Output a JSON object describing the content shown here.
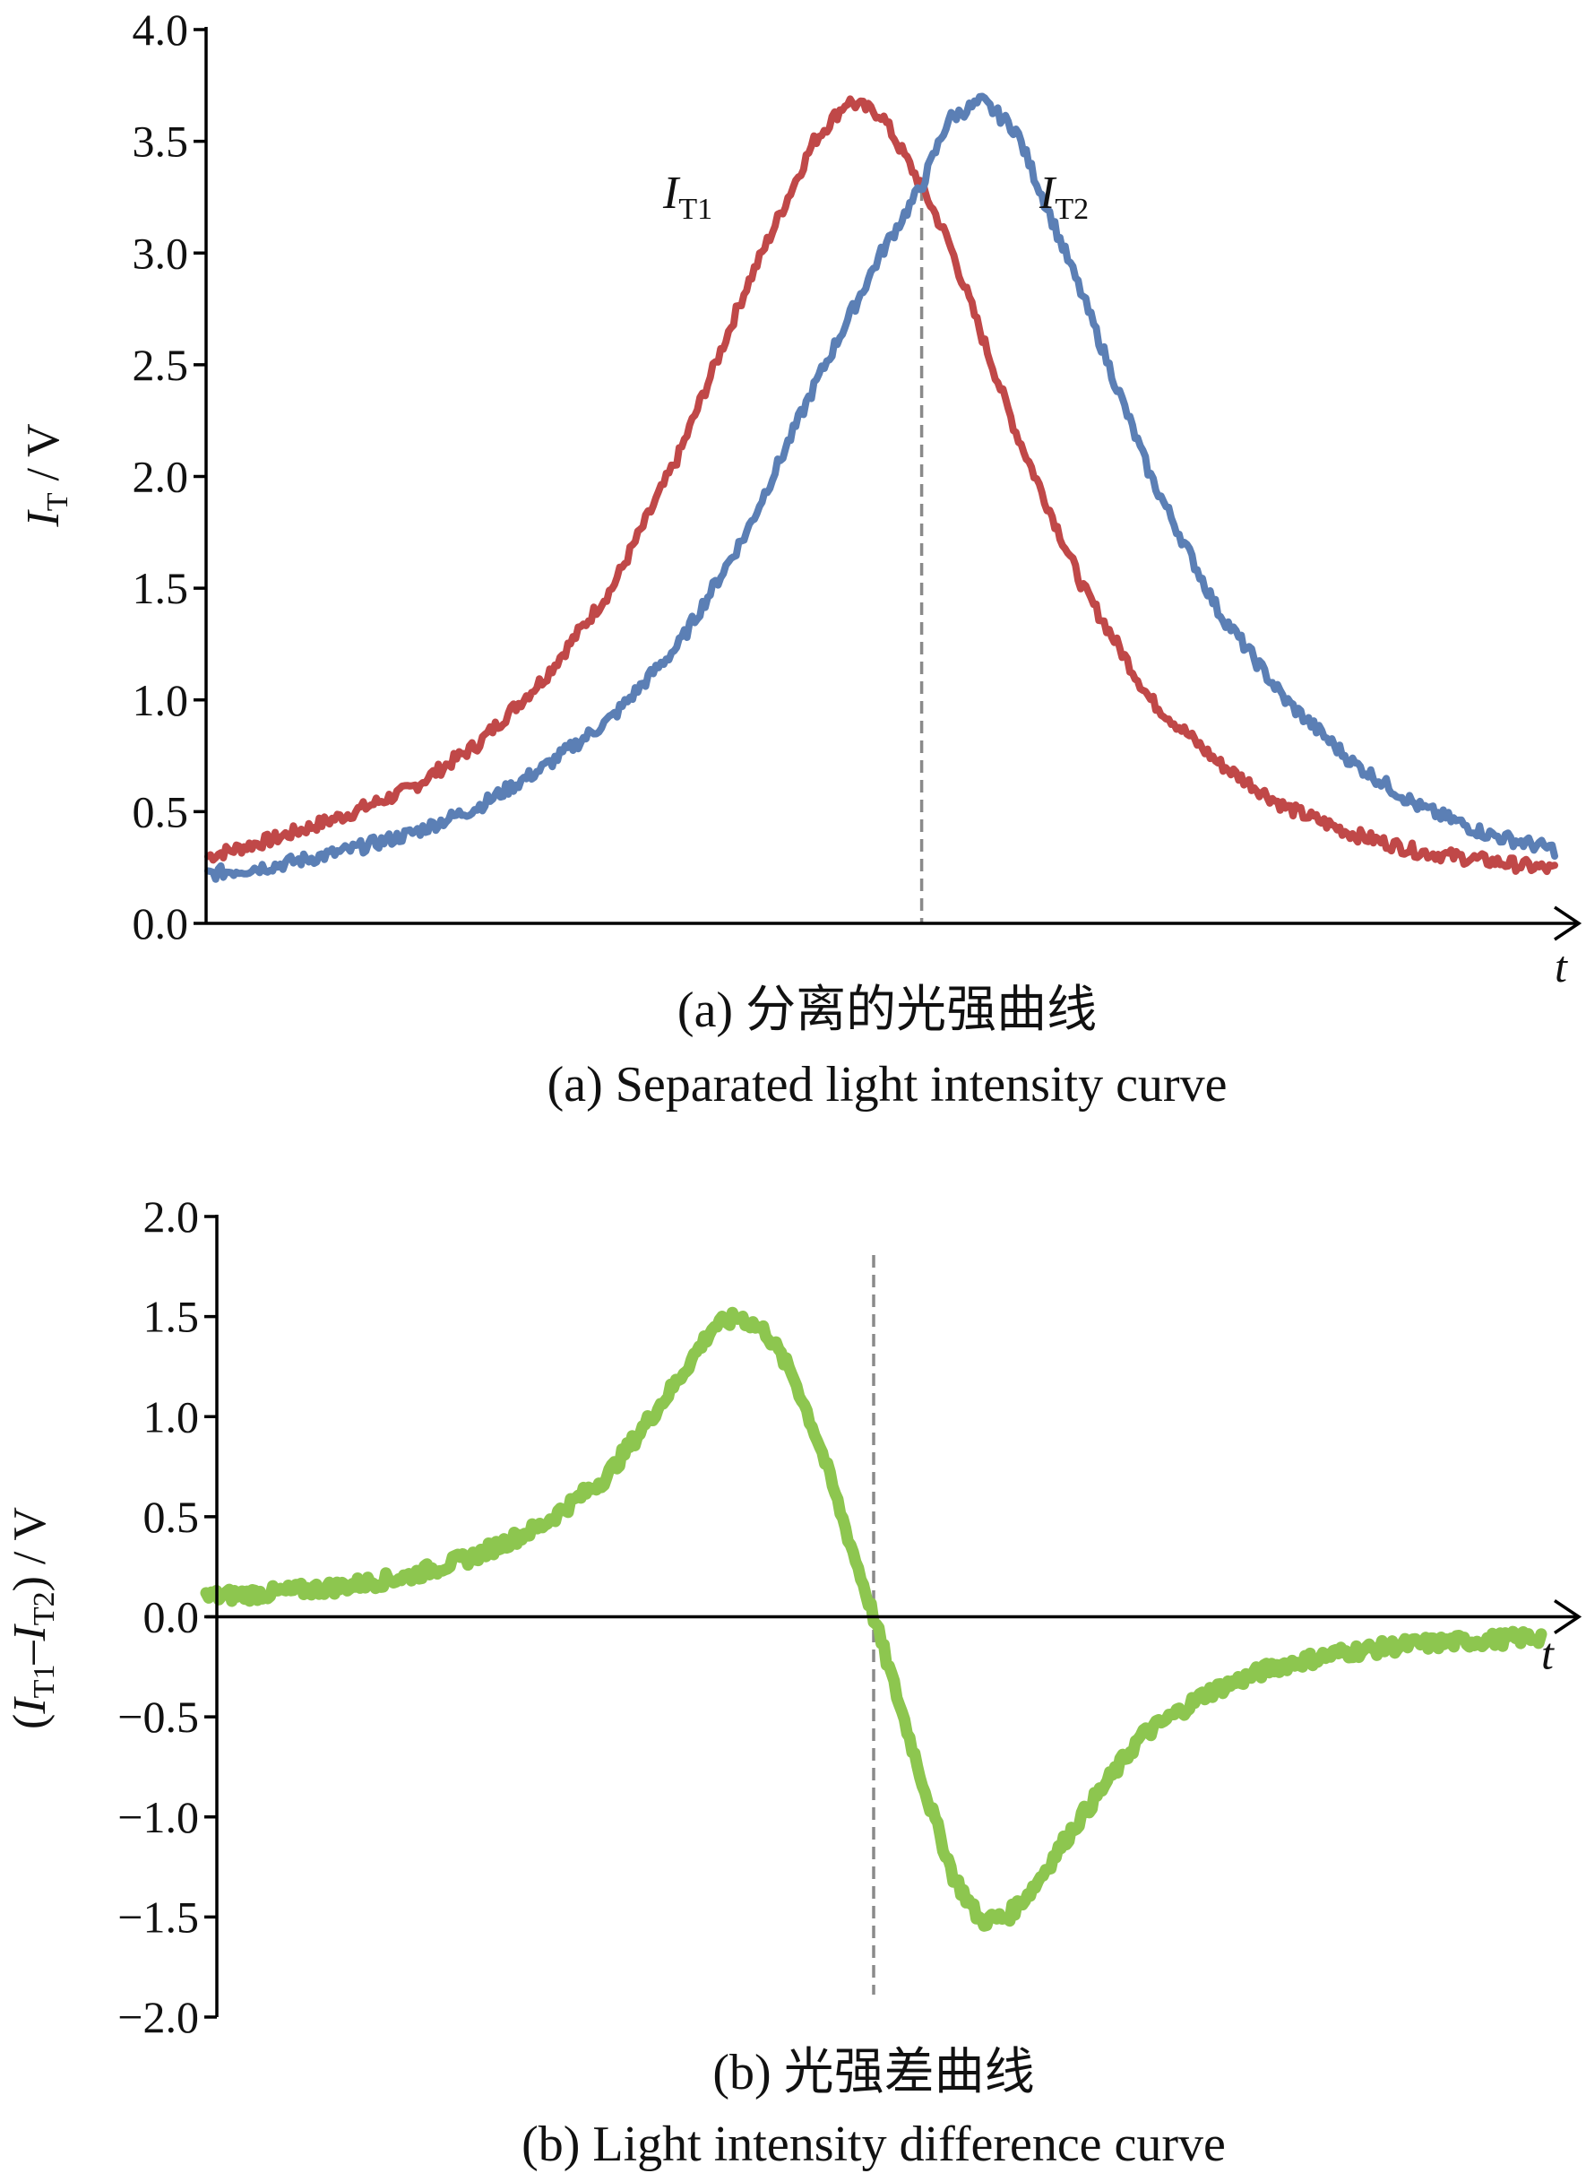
{
  "chart_data": [
    {
      "type": "line",
      "ylabel_main": "I",
      "ylabel_sub": "T",
      "ylabel_rest": " / V",
      "xlabel": "t",
      "ylim": [
        0,
        4.0
      ],
      "yticks": [
        "0.0",
        "0.5",
        "1.0",
        "1.5",
        "2.0",
        "2.5",
        "3.0",
        "3.5",
        "4.0"
      ],
      "caption_cn": "(a) 分离的光强曲线",
      "caption_en": "(a) Separated light intensity curve",
      "crossing_x": 0.53,
      "colors": {
        "IT1": "#c04848",
        "IT2": "#5b7fb5"
      },
      "series": [
        {
          "name_main": "I",
          "name_sub": "T1",
          "x": [
            0.0,
            0.05,
            0.1,
            0.15,
            0.2,
            0.25,
            0.3,
            0.35,
            0.4,
            0.45,
            0.475,
            0.5,
            0.53,
            0.55,
            0.6,
            0.65,
            0.7,
            0.75,
            0.8,
            0.85,
            0.9,
            0.95,
            1.0
          ],
          "values": [
            0.3,
            0.38,
            0.48,
            0.6,
            0.8,
            1.1,
            1.5,
            2.1,
            2.85,
            3.5,
            3.68,
            3.62,
            3.3,
            3.05,
            2.2,
            1.5,
            1.0,
            0.72,
            0.52,
            0.4,
            0.32,
            0.28,
            0.24
          ]
        },
        {
          "name_main": "I",
          "name_sub": "T2",
          "x": [
            0.0,
            0.05,
            0.1,
            0.15,
            0.2,
            0.25,
            0.3,
            0.35,
            0.4,
            0.45,
            0.5,
            0.53,
            0.55,
            0.575,
            0.6,
            0.65,
            0.7,
            0.75,
            0.8,
            0.85,
            0.9,
            0.95,
            1.0
          ],
          "values": [
            0.22,
            0.26,
            0.32,
            0.4,
            0.52,
            0.7,
            0.92,
            1.25,
            1.75,
            2.4,
            3.0,
            3.3,
            3.6,
            3.68,
            3.55,
            2.8,
            2.0,
            1.4,
            1.0,
            0.72,
            0.52,
            0.4,
            0.33
          ]
        }
      ]
    },
    {
      "type": "line",
      "ylabel_parts": [
        "(",
        "I",
        "T1",
        "–",
        "I",
        "T2",
        ") / V"
      ],
      "xlabel": "t",
      "ylim": [
        -2.0,
        2.0
      ],
      "yticks": [
        "−2.0",
        "−1.5",
        "−1.0",
        "−0.5",
        "0.0",
        "0.5",
        "1.0",
        "1.5",
        "2.0"
      ],
      "caption_cn": "(b) 光强差曲线",
      "caption_en": "(b) Light intensity difference curve",
      "crossing_x": 0.5,
      "colors": {
        "diff": "#8dc64f"
      },
      "series": [
        {
          "x": [
            0.0,
            0.05,
            0.1,
            0.15,
            0.2,
            0.25,
            0.3,
            0.35,
            0.38,
            0.4,
            0.42,
            0.44,
            0.46,
            0.48,
            0.5,
            0.52,
            0.54,
            0.56,
            0.58,
            0.6,
            0.62,
            0.65,
            0.7,
            0.75,
            0.8,
            0.85,
            0.9,
            0.95,
            1.0
          ],
          "values": [
            0.1,
            0.12,
            0.15,
            0.2,
            0.3,
            0.45,
            0.7,
            1.15,
            1.45,
            1.5,
            1.42,
            1.2,
            0.85,
            0.42,
            0.0,
            -0.45,
            -0.9,
            -1.3,
            -1.52,
            -1.5,
            -1.35,
            -1.05,
            -0.6,
            -0.38,
            -0.25,
            -0.18,
            -0.14,
            -0.12,
            -0.1
          ]
        }
      ]
    }
  ]
}
